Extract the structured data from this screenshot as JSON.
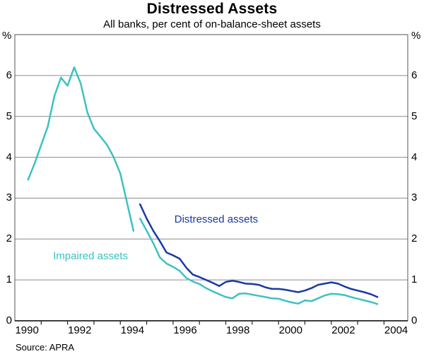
{
  "header": {
    "title": "Distressed Assets",
    "subtitle": "All banks, per cent of on-balance-sheet assets"
  },
  "footer": {
    "source": "Source: APRA"
  },
  "axes": {
    "unit_left": "%",
    "unit_right": "%",
    "y_ticks": [
      0,
      1,
      2,
      3,
      4,
      5,
      6
    ],
    "x_tick_years": [
      1991,
      1992,
      1993,
      1994,
      1995,
      1996,
      1997,
      1998,
      1999,
      2000,
      2001,
      2002,
      2003,
      2004
    ],
    "x_labels": [
      "1990",
      "1992",
      "1994",
      "1996",
      "1998",
      "2000",
      "2002",
      "2004"
    ],
    "x_label_years": [
      1990,
      1992,
      1994,
      1996,
      1998,
      2000,
      2002,
      2004
    ]
  },
  "colors": {
    "impaired": "#3EC1C1",
    "distressed": "#1A39A3",
    "gridline": "#8a8a8a",
    "frame": "#555555",
    "axis": "#222222"
  },
  "chart_data": {
    "type": "line",
    "title": "Distressed Assets",
    "subtitle": "All banks, per cent of on-balance-sheet assets",
    "ylabel": "%",
    "ylim": [
      0,
      7
    ],
    "xlim": [
      1990,
      2004.9
    ],
    "grid": "horizontal-only",
    "legend_position": "inline-annotations",
    "frequency": "quarterly",
    "series": [
      {
        "name": "Impaired assets (pre-break series)",
        "color": "#3EC1C1",
        "x_start": 1990.5,
        "x_step": 0.25,
        "values": [
          3.45,
          3.85,
          4.3,
          4.75,
          5.5,
          5.95,
          5.75,
          6.2,
          5.8,
          5.1,
          4.7,
          4.5,
          4.3,
          4.0,
          3.6,
          2.9,
          2.2
        ]
      },
      {
        "name": "Distressed assets",
        "color": "#1A39A3",
        "x_start": 1994.75,
        "x_step": 0.25,
        "values": [
          2.85,
          2.5,
          2.2,
          1.95,
          1.67,
          1.6,
          1.52,
          1.3,
          1.13,
          1.07,
          1.0,
          0.93,
          0.85,
          0.95,
          0.98,
          0.95,
          0.91,
          0.9,
          0.88,
          0.82,
          0.78,
          0.78,
          0.76,
          0.73,
          0.7,
          0.74,
          0.8,
          0.88,
          0.91,
          0.94,
          0.91,
          0.84,
          0.78,
          0.74,
          0.7,
          0.65,
          0.58
        ]
      },
      {
        "name": "Impaired assets",
        "color": "#3EC1C1",
        "x_start": 1994.75,
        "x_step": 0.25,
        "values": [
          2.5,
          2.2,
          1.9,
          1.55,
          1.4,
          1.32,
          1.22,
          1.05,
          0.96,
          0.9,
          0.8,
          0.72,
          0.65,
          0.58,
          0.55,
          0.66,
          0.67,
          0.64,
          0.61,
          0.58,
          0.55,
          0.54,
          0.49,
          0.45,
          0.42,
          0.5,
          0.48,
          0.55,
          0.62,
          0.66,
          0.65,
          0.63,
          0.58,
          0.54,
          0.5,
          0.46,
          0.41
        ]
      }
    ],
    "annotations": [
      {
        "text": "Distressed assets",
        "color": "#1A39A3",
        "x": 1996.05,
        "y": 2.45
      },
      {
        "text": "Impaired assets",
        "color": "#3EC1C1",
        "x": 1991.45,
        "y": 1.56
      }
    ]
  }
}
